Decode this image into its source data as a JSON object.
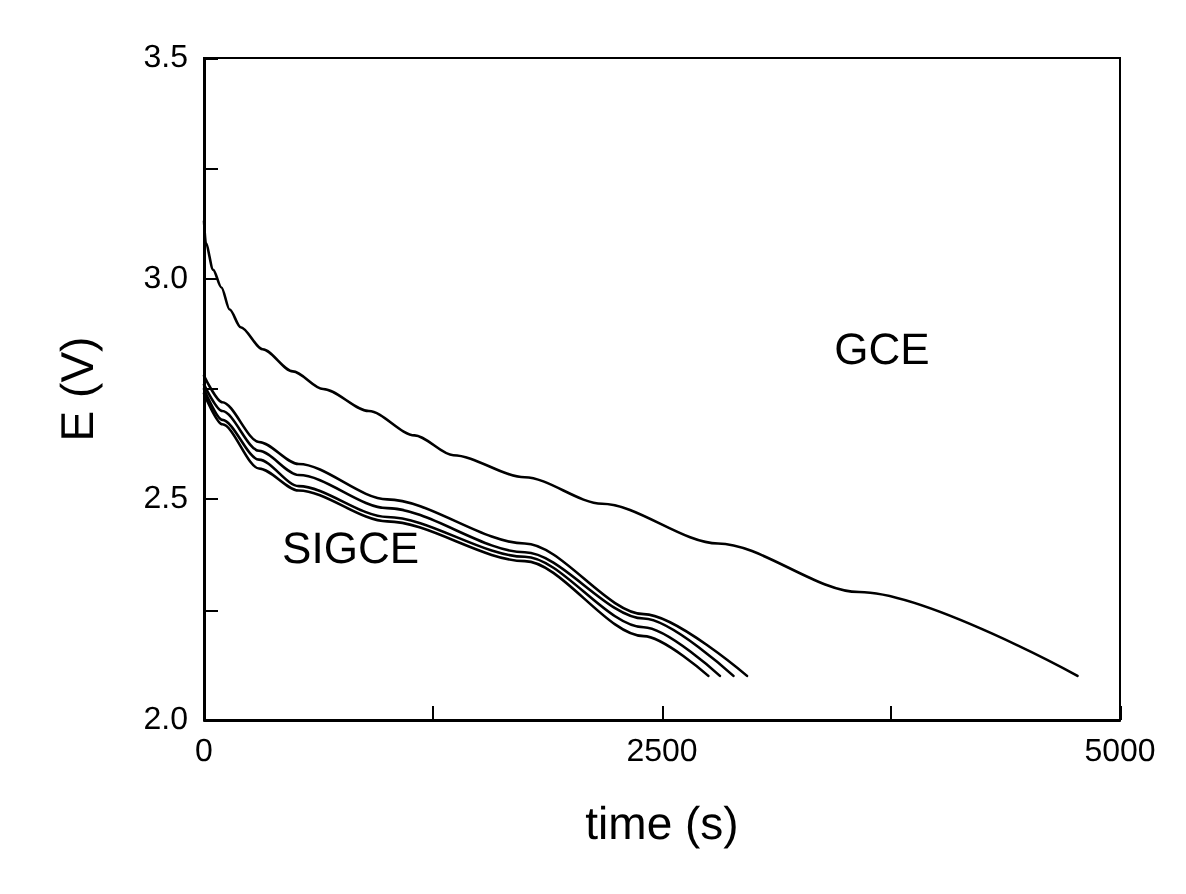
{
  "chart_data": {
    "type": "line",
    "xlabel": "time (s)",
    "ylabel": "E (V)",
    "xlim": [
      0,
      5000
    ],
    "ylim": [
      2.0,
      3.5
    ],
    "xticks": [
      0,
      2500,
      5000,
      {
        "value": 1250,
        "label": null
      },
      {
        "value": 3750,
        "label": null
      }
    ],
    "yticks": [
      {
        "value": 2.0,
        "label": "2.0"
      },
      {
        "value": 2.5,
        "label": "2.5"
      },
      {
        "value": 3.0,
        "label": "3.0"
      },
      {
        "value": 3.5,
        "label": "3.5"
      },
      {
        "value": 2.25,
        "label": null
      },
      {
        "value": 2.75,
        "label": null
      },
      {
        "value": 3.25,
        "label": null
      }
    ],
    "grid": false,
    "marker": "none",
    "line_style": "solid",
    "series": [
      {
        "color": "#000000",
        "x": [
          0,
          10,
          50,
          95,
          140,
          200,
          320,
          485,
          650,
          900,
          1150,
          1361,
          1751,
          2173,
          2806,
          3576,
          4768
        ],
        "values": [
          3.13,
          3.08,
          3.02,
          2.98,
          2.93,
          2.89,
          2.84,
          2.79,
          2.75,
          2.7,
          2.645,
          2.6,
          2.55,
          2.49,
          2.4,
          2.29,
          2.1
        ]
      },
      {
        "color": "#000000",
        "x": [
          0,
          100,
          300,
          517,
          1000,
          1751,
          2400,
          2964
        ],
        "values": [
          2.78,
          2.72,
          2.63,
          2.58,
          2.5,
          2.4,
          2.24,
          2.1
        ]
      },
      {
        "color": "#000000",
        "x": [
          0,
          100,
          300,
          517,
          1000,
          1751,
          2400,
          2890
        ],
        "values": [
          2.76,
          2.7,
          2.61,
          2.555,
          2.48,
          2.38,
          2.23,
          2.1
        ]
      },
      {
        "color": "#000000",
        "x": [
          0,
          100,
          300,
          517,
          1000,
          1751,
          2400,
          2816
        ],
        "values": [
          2.75,
          2.68,
          2.59,
          2.53,
          2.46,
          2.37,
          2.21,
          2.1
        ]
      },
      {
        "color": "#000000",
        "x": [
          0,
          100,
          300,
          517,
          1000,
          1751,
          2400,
          2753
        ],
        "values": [
          2.74,
          2.67,
          2.57,
          2.52,
          2.45,
          2.36,
          2.19,
          2.1
        ]
      }
    ],
    "annotations": [
      "GCE",
      "SIGCE"
    ]
  }
}
